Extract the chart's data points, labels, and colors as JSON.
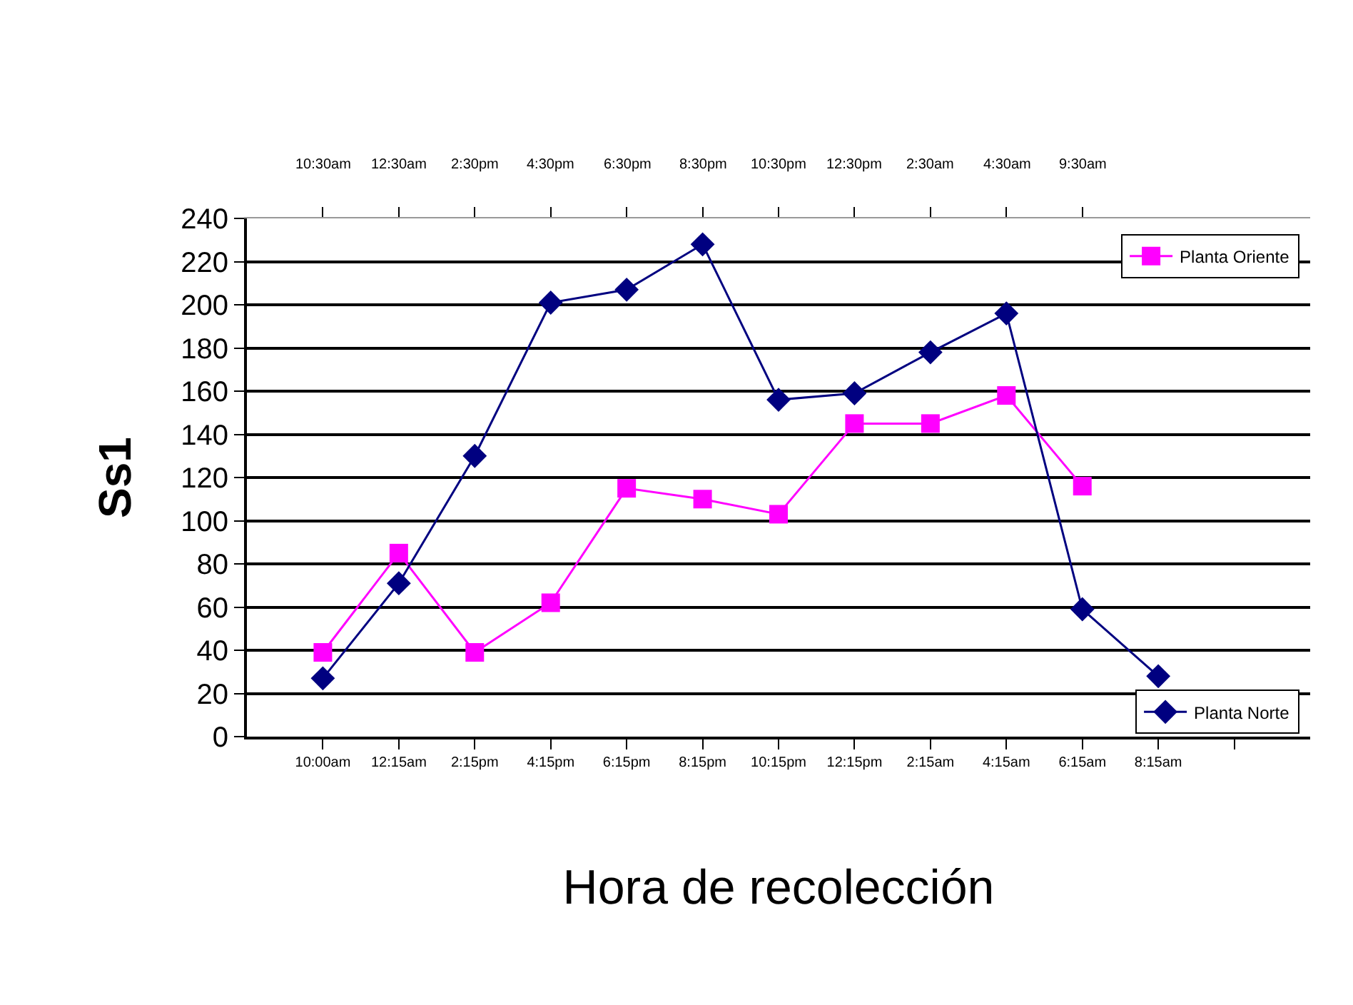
{
  "chart_data": {
    "type": "line",
    "xlabel": "Hora de recolección",
    "ylabel": "Ss1",
    "categories": [
      "10:00am",
      "12:15am",
      "2:15pm",
      "4:15pm",
      "6:15pm",
      "8:15pm",
      "10:15pm",
      "12:15pm",
      "2:15am",
      "4:15am",
      "6:15am",
      "8:15am",
      null
    ],
    "annotations": [
      "10:30am",
      "12:30am",
      "2:30pm",
      "4:30pm",
      "6:30pm",
      "8:30pm",
      "10:30pm",
      "12:30pm",
      "2:30am",
      "4:30am",
      "9:30am"
    ],
    "ylim": [
      0,
      240
    ],
    "yticks": [
      0,
      20,
      40,
      60,
      80,
      100,
      120,
      140,
      160,
      180,
      200,
      220,
      240
    ],
    "grid": "y",
    "legend": "right",
    "series": [
      {
        "name": "Planta Oriente",
        "color": "#ff00ff",
        "marker": "square",
        "values": [
          39,
          85,
          39,
          62,
          115,
          110,
          103,
          145,
          145,
          158,
          116,
          null,
          null
        ]
      },
      {
        "name": "Planta Norte",
        "color": "#000080",
        "marker": "diamond",
        "values": [
          27,
          71,
          130,
          201,
          207,
          228,
          156,
          159,
          178,
          196,
          59,
          28,
          null
        ]
      }
    ]
  }
}
